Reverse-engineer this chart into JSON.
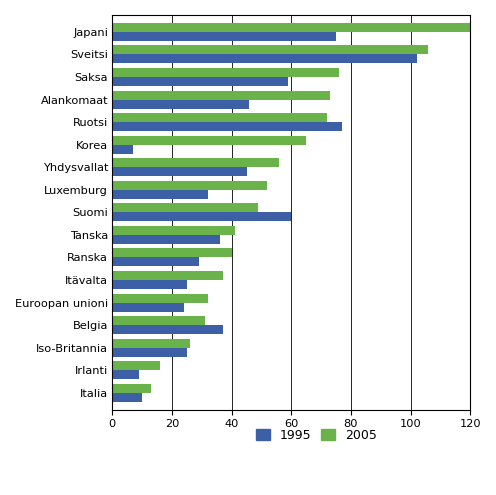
{
  "categories": [
    "Japani",
    "Sveitsi",
    "Saksa",
    "Alankomaat",
    "Ruotsi",
    "Korea",
    "Yhdysvallat",
    "Luxemburg",
    "Suomi",
    "Tanska",
    "Ranska",
    "Itävalta",
    "Euroopan unioni",
    "Belgia",
    "Iso-Britannia",
    "Irlanti",
    "Italia"
  ],
  "values_1995": [
    75,
    102,
    59,
    46,
    77,
    7,
    45,
    32,
    60,
    36,
    29,
    25,
    24,
    37,
    25,
    9,
    10
  ],
  "values_2005": [
    120,
    106,
    76,
    73,
    72,
    65,
    56,
    52,
    49,
    41,
    40,
    37,
    32,
    31,
    26,
    16,
    13
  ],
  "color_1995": "#3c5fa5",
  "color_2005": "#6ab24a",
  "xlim": [
    0,
    120
  ],
  "xticks": [
    0,
    20,
    40,
    60,
    80,
    100,
    120
  ],
  "legend_labels": [
    "1995",
    "2005"
  ],
  "bar_height": 0.4,
  "title": ""
}
